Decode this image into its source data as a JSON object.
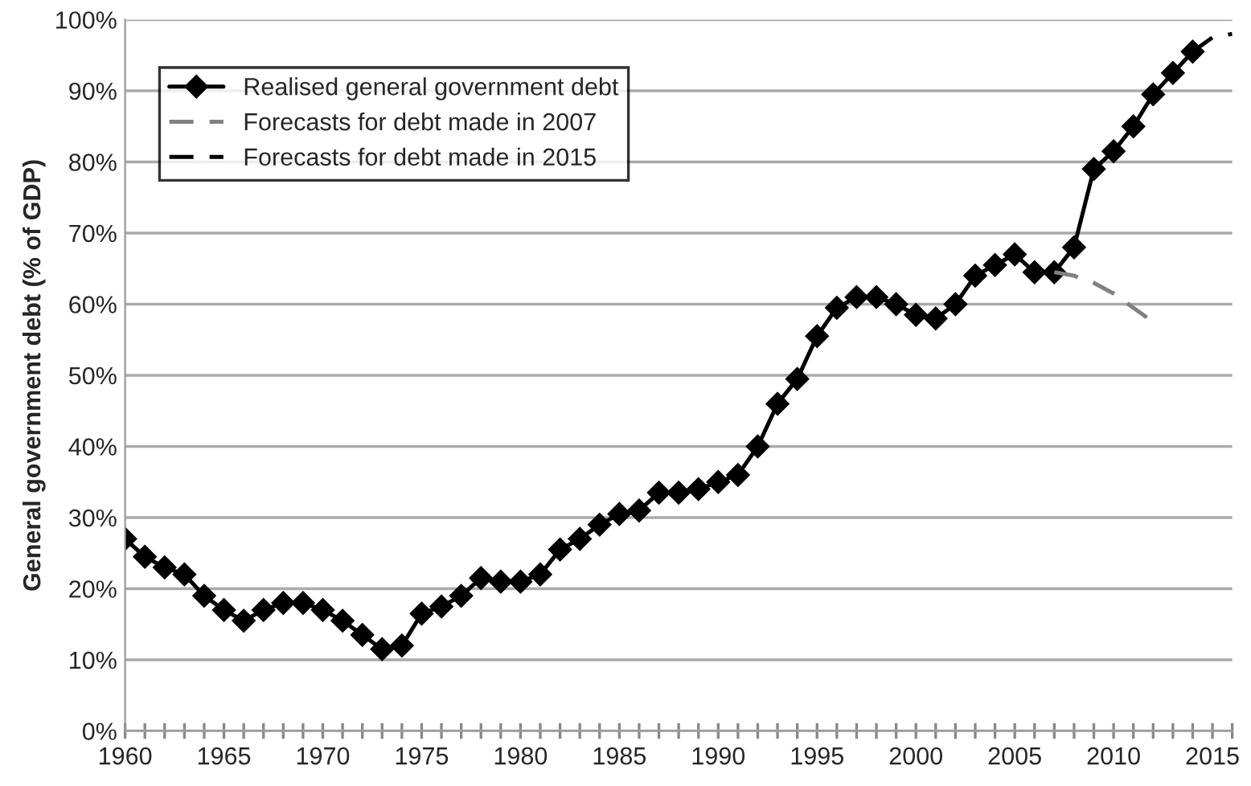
{
  "chart_data": {
    "type": "line",
    "ylabel": "General government debt (% of GDP)",
    "xlim": [
      1960,
      2016
    ],
    "ylim": [
      0,
      100
    ],
    "xticks": [
      1960,
      {
        "value": 1961,
        "label": null
      },
      {
        "value": 1962,
        "label": null
      },
      {
        "value": 1963,
        "label": null
      },
      {
        "value": 1964,
        "label": null
      },
      1965,
      {
        "value": 1966,
        "label": null
      },
      {
        "value": 1967,
        "label": null
      },
      {
        "value": 1968,
        "label": null
      },
      {
        "value": 1969,
        "label": null
      },
      1970,
      {
        "value": 1971,
        "label": null
      },
      {
        "value": 1972,
        "label": null
      },
      {
        "value": 1973,
        "label": null
      },
      {
        "value": 1974,
        "label": null
      },
      1975,
      {
        "value": 1976,
        "label": null
      },
      {
        "value": 1977,
        "label": null
      },
      {
        "value": 1978,
        "label": null
      },
      {
        "value": 1979,
        "label": null
      },
      1980,
      {
        "value": 1981,
        "label": null
      },
      {
        "value": 1982,
        "label": null
      },
      {
        "value": 1983,
        "label": null
      },
      {
        "value": 1984,
        "label": null
      },
      1985,
      {
        "value": 1986,
        "label": null
      },
      {
        "value": 1987,
        "label": null
      },
      {
        "value": 1988,
        "label": null
      },
      {
        "value": 1989,
        "label": null
      },
      1990,
      {
        "value": 1991,
        "label": null
      },
      {
        "value": 1992,
        "label": null
      },
      {
        "value": 1993,
        "label": null
      },
      {
        "value": 1994,
        "label": null
      },
      1995,
      {
        "value": 1996,
        "label": null
      },
      {
        "value": 1997,
        "label": null
      },
      {
        "value": 1998,
        "label": null
      },
      {
        "value": 1999,
        "label": null
      },
      2000,
      {
        "value": 2001,
        "label": null
      },
      {
        "value": 2002,
        "label": null
      },
      {
        "value": 2003,
        "label": null
      },
      {
        "value": 2004,
        "label": null
      },
      2005,
      {
        "value": 2006,
        "label": null
      },
      {
        "value": 2007,
        "label": null
      },
      {
        "value": 2008,
        "label": null
      },
      {
        "value": 2009,
        "label": null
      },
      2010,
      {
        "value": 2011,
        "label": null
      },
      {
        "value": 2012,
        "label": null
      },
      {
        "value": 2013,
        "label": null
      },
      {
        "value": 2014,
        "label": null
      },
      2015,
      {
        "value": 2016,
        "label": null
      }
    ],
    "yticks": [
      {
        "value": 0,
        "label": "0%"
      },
      {
        "value": 10,
        "label": "10%"
      },
      {
        "value": 20,
        "label": "20%"
      },
      {
        "value": 30,
        "label": "30%"
      },
      {
        "value": 40,
        "label": "40%"
      },
      {
        "value": 50,
        "label": "50%"
      },
      {
        "value": 60,
        "label": "60%"
      },
      {
        "value": 70,
        "label": "70%"
      },
      {
        "value": 80,
        "label": "80%"
      },
      {
        "value": 90,
        "label": "90%"
      },
      {
        "value": 100,
        "label": "100%"
      }
    ],
    "grid": "y",
    "legend": "top left",
    "series": [
      {
        "name": "Realised general government debt",
        "color": "#000000",
        "marker": "diamond",
        "line_style": "solid",
        "x": [
          1960,
          1961,
          1962,
          1963,
          1964,
          1965,
          1966,
          1967,
          1968,
          1969,
          1970,
          1971,
          1972,
          1973,
          1974,
          1975,
          1976,
          1977,
          1978,
          1979,
          1980,
          1981,
          1982,
          1983,
          1984,
          1985,
          1986,
          1987,
          1988,
          1989,
          1990,
          1991,
          1992,
          1993,
          1994,
          1995,
          1996,
          1997,
          1998,
          1999,
          2000,
          2001,
          2002,
          2003,
          2004,
          2005,
          2006,
          2007,
          2008,
          2009,
          2010,
          2011,
          2012,
          2013,
          2014
        ],
        "values": [
          27,
          24.5,
          23,
          22,
          19,
          17,
          15.5,
          17,
          18,
          18,
          17,
          15.5,
          13.5,
          11.5,
          12,
          16.5,
          17.5,
          19,
          21.5,
          21,
          21,
          22,
          25.5,
          27,
          29,
          30.5,
          31,
          33.5,
          33.5,
          34,
          35,
          36,
          40,
          46,
          49.5,
          55.5,
          59.5,
          61,
          61,
          60,
          58.5,
          58,
          60,
          64,
          65.5,
          67,
          64.5,
          64.5,
          68,
          79,
          81.5,
          85,
          89.5,
          92.5,
          95.5
        ]
      },
      {
        "name": "Forecasts for debt made in 2007",
        "color": "#808080",
        "marker": "none",
        "line_style": "dashed",
        "x": [
          2007,
          2008,
          2009,
          2010,
          2011,
          2012
        ],
        "values": [
          64.5,
          64,
          63,
          61.5,
          59.5,
          57.5
        ]
      },
      {
        "name": "Forecasts for debt made in 2015",
        "color": "#000000",
        "marker": "none",
        "line_style": "dashed",
        "x": [
          2014,
          2015,
          2016
        ],
        "values": [
          95.5,
          97.5,
          98
        ]
      }
    ]
  }
}
